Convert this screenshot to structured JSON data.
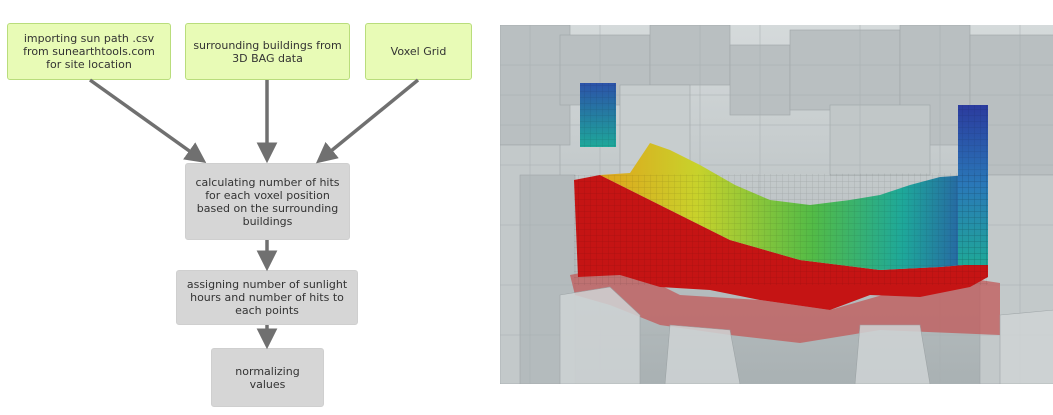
{
  "flowchart": {
    "nodes": [
      {
        "id": "sun_path",
        "text": "importing sun path .csv from sunearthtools.com for site location"
      },
      {
        "id": "buildings",
        "text": "surrounding buildings from 3D BAG data"
      },
      {
        "id": "voxel_grid",
        "text": "Voxel Grid"
      },
      {
        "id": "calc_hits",
        "text": "calculating number of hits for each voxel position based on the surrounding buildings"
      },
      {
        "id": "assign",
        "text": "assigning number of sunlight hours and number of hits to each points"
      },
      {
        "id": "normalize",
        "text": "normalizing values"
      }
    ],
    "edges": [
      {
        "from": "sun_path",
        "to": "calc_hits"
      },
      {
        "from": "buildings",
        "to": "calc_hits"
      },
      {
        "from": "voxel_grid",
        "to": "calc_hits"
      },
      {
        "from": "calc_hits",
        "to": "assign"
      },
      {
        "from": "assign",
        "to": "normalize"
      }
    ],
    "colors": {
      "input_fill": "#e8fbb6",
      "process_fill": "#d6d6d6",
      "arrow": "#707070"
    }
  },
  "render": {
    "description_hidden": true,
    "colormap": [
      "#b91111",
      "#e2231a",
      "#f47b16",
      "#f7d51a",
      "#a7d32a",
      "#4cbb4a",
      "#1fa898",
      "#2a78b8",
      "#2b3b9e"
    ]
  }
}
